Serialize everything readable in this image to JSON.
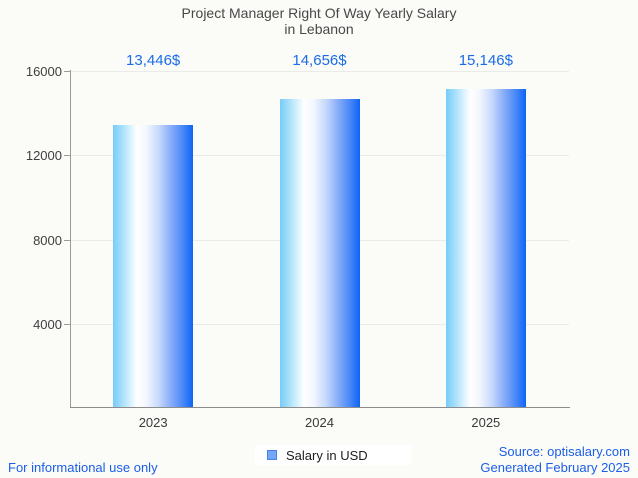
{
  "chart_data": {
    "type": "bar",
    "title": "Project Manager Right Of Way Yearly Salary in Lebanon",
    "title_lines": [
      "Project Manager Right Of Way Yearly Salary",
      "in Lebanon"
    ],
    "categories": [
      "2023",
      "2024",
      "2025"
    ],
    "series": [
      {
        "name": "Salary in USD",
        "values": [
          13446,
          14656,
          15146
        ]
      }
    ],
    "value_labels": [
      "13,446$",
      "14,656$",
      "15,146$"
    ],
    "xlabel": "",
    "ylabel": "",
    "ylim": [
      0,
      16000
    ],
    "yticks": [
      4000,
      8000,
      12000,
      16000
    ],
    "grid": true,
    "legend_position": "bottom",
    "legend_label": "Salary in USD"
  },
  "colors": {
    "background": "#fbfbf8",
    "title_text": "#484848",
    "value_label_text": "#1a6ce8",
    "footer_text": "#1b5fe8",
    "axis_line": "#8c8c8c",
    "grid_line": "#ebebe9",
    "bar_gradient_left": "#76cdf8",
    "bar_gradient_mid": "#ffffff",
    "bar_gradient_right": "#0d64f6",
    "legend_swatch_fill": "#72a7f5",
    "legend_swatch_border": "#4a80ee"
  },
  "footer": {
    "disclaimer": "For informational use only",
    "source": "Source: optisalary.com",
    "generated": "Generated February 2025"
  }
}
